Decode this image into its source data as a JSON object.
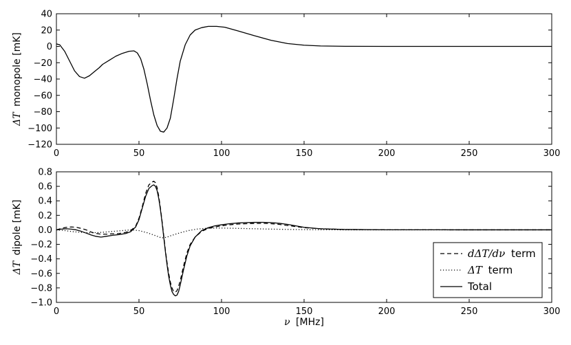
{
  "chart_data": [
    {
      "type": "line",
      "ylabel_math": "ΔT",
      "ylabel_text": "monopole [mK]",
      "xlim": [
        0,
        300
      ],
      "ylim": [
        -120,
        40
      ],
      "xticks": [
        0,
        50,
        100,
        150,
        200,
        250,
        300
      ],
      "yticks": [
        40,
        20,
        0,
        -20,
        -40,
        -60,
        -80,
        -100,
        -120
      ],
      "xtick_labels": [
        "0",
        "50",
        "100",
        "150",
        "200",
        "250",
        "300"
      ],
      "ytick_labels": [
        "40",
        "20",
        "0",
        "−20",
        "−40",
        "−60",
        "−80",
        "−100",
        "−120"
      ],
      "grid": false,
      "series": [
        {
          "style": "solid",
          "x": [
            0,
            2,
            5,
            8,
            11,
            14,
            17,
            20,
            23,
            26,
            28,
            32,
            36,
            40,
            44,
            47,
            49,
            51,
            53,
            55,
            57,
            59,
            61,
            63,
            65,
            67,
            69,
            71,
            73,
            75,
            78,
            81,
            84,
            88,
            92,
            97,
            102,
            110,
            120,
            130,
            140,
            150,
            160,
            175,
            200,
            250,
            300
          ],
          "y": [
            3,
            2,
            -6,
            -18,
            -30,
            -37,
            -39,
            -36,
            -31,
            -26,
            -22,
            -17,
            -12,
            -8.5,
            -6,
            -5.5,
            -8,
            -15,
            -28,
            -46,
            -66,
            -84,
            -97,
            -104,
            -105,
            -100,
            -88,
            -65,
            -40,
            -18,
            2,
            14,
            20,
            23,
            24.5,
            24.5,
            23.5,
            19,
            13,
            7.5,
            3.5,
            1.5,
            0.5,
            0.1,
            0,
            0,
            0
          ]
        }
      ]
    },
    {
      "type": "line",
      "ylabel_math": "ΔT",
      "ylabel_text": "dipole [mK]",
      "xlabel_math": "ν",
      "xlabel_text": "[MHz]",
      "xlim": [
        0,
        300
      ],
      "ylim": [
        -1.0,
        0.8
      ],
      "xticks": [
        0,
        50,
        100,
        150,
        200,
        250,
        300
      ],
      "yticks": [
        0.8,
        0.6,
        0.4,
        0.2,
        0.0,
        -0.2,
        -0.4,
        -0.6,
        -0.8,
        -1.0
      ],
      "xtick_labels": [
        "0",
        "50",
        "100",
        "150",
        "200",
        "250",
        "300"
      ],
      "ytick_labels": [
        "0.8",
        "0.6",
        "0.4",
        "0.2",
        "0.0",
        "−0.2",
        "−0.4",
        "−0.6",
        "−0.8",
        "−1.0"
      ],
      "grid": false,
      "legend_position": "lower-right",
      "series": [
        {
          "name_math": "dΔT/dν",
          "name_text": "term",
          "style": "dashed",
          "x": [
            0,
            3,
            6,
            9,
            12,
            15,
            18,
            21,
            24,
            27,
            30,
            34,
            38,
            42,
            45,
            48,
            50,
            52,
            54,
            56,
            58,
            59,
            60,
            61,
            62,
            63,
            64,
            65,
            66,
            67,
            68,
            69,
            70,
            71,
            72,
            73,
            74,
            75,
            77,
            79,
            81,
            84,
            88,
            92,
            96,
            100,
            105,
            110,
            115,
            120,
            125,
            130,
            135,
            140,
            145,
            150,
            160,
            175,
            200,
            250,
            300
          ],
          "y": [
            0.0,
            0.02,
            0.035,
            0.04,
            0.035,
            0.02,
            0.0,
            -0.03,
            -0.05,
            -0.06,
            -0.06,
            -0.055,
            -0.05,
            -0.035,
            -0.01,
            0.05,
            0.16,
            0.32,
            0.5,
            0.62,
            0.66,
            0.67,
            0.65,
            0.58,
            0.46,
            0.3,
            0.12,
            -0.08,
            -0.28,
            -0.45,
            -0.6,
            -0.72,
            -0.8,
            -0.85,
            -0.86,
            -0.84,
            -0.78,
            -0.7,
            -0.5,
            -0.32,
            -0.2,
            -0.1,
            -0.02,
            0.02,
            0.04,
            0.055,
            0.07,
            0.08,
            0.085,
            0.088,
            0.09,
            0.085,
            0.075,
            0.06,
            0.045,
            0.03,
            0.015,
            0.005,
            0.001,
            0,
            0
          ]
        },
        {
          "name_math": "ΔT",
          "name_text": "term",
          "style": "dotted",
          "x": [
            0,
            5,
            10,
            15,
            20,
            25,
            30,
            35,
            40,
            45,
            50,
            55,
            60,
            63,
            65,
            67,
            70,
            75,
            80,
            85,
            90,
            95,
            100,
            110,
            120,
            130,
            140,
            150,
            160,
            175,
            200,
            250,
            300
          ],
          "y": [
            0.0,
            -0.01,
            -0.025,
            -0.035,
            -0.04,
            -0.038,
            -0.03,
            -0.02,
            -0.01,
            0.0,
            -0.01,
            -0.04,
            -0.08,
            -0.105,
            -0.11,
            -0.1,
            -0.075,
            -0.04,
            -0.01,
            0.01,
            0.02,
            0.025,
            0.025,
            0.02,
            0.015,
            0.01,
            0.006,
            0.003,
            0.001,
            0,
            0,
            0,
            0
          ]
        },
        {
          "name_text": "Total",
          "style": "solid",
          "x": [
            0,
            3,
            6,
            9,
            12,
            15,
            18,
            21,
            24,
            27,
            30,
            34,
            38,
            42,
            45,
            48,
            50,
            52,
            54,
            56,
            58,
            59,
            60,
            61,
            62,
            63,
            64,
            65,
            66,
            67,
            68,
            69,
            70,
            71,
            72,
            73,
            74,
            75,
            77,
            79,
            81,
            84,
            88,
            92,
            96,
            100,
            105,
            110,
            115,
            120,
            125,
            130,
            135,
            140,
            145,
            150,
            160,
            175,
            200,
            250,
            300
          ],
          "y": [
            0.0,
            0.01,
            0.015,
            0.01,
            0.0,
            -0.02,
            -0.045,
            -0.07,
            -0.09,
            -0.1,
            -0.09,
            -0.075,
            -0.065,
            -0.05,
            -0.025,
            0.04,
            0.14,
            0.3,
            0.46,
            0.57,
            0.61,
            0.62,
            0.6,
            0.54,
            0.43,
            0.28,
            0.1,
            -0.1,
            -0.3,
            -0.48,
            -0.64,
            -0.76,
            -0.85,
            -0.89,
            -0.91,
            -0.9,
            -0.85,
            -0.76,
            -0.55,
            -0.36,
            -0.22,
            -0.1,
            -0.01,
            0.03,
            0.055,
            0.07,
            0.085,
            0.095,
            0.1,
            0.103,
            0.104,
            0.1,
            0.09,
            0.075,
            0.055,
            0.035,
            0.015,
            0.005,
            0.001,
            0,
            0
          ]
        }
      ]
    }
  ]
}
